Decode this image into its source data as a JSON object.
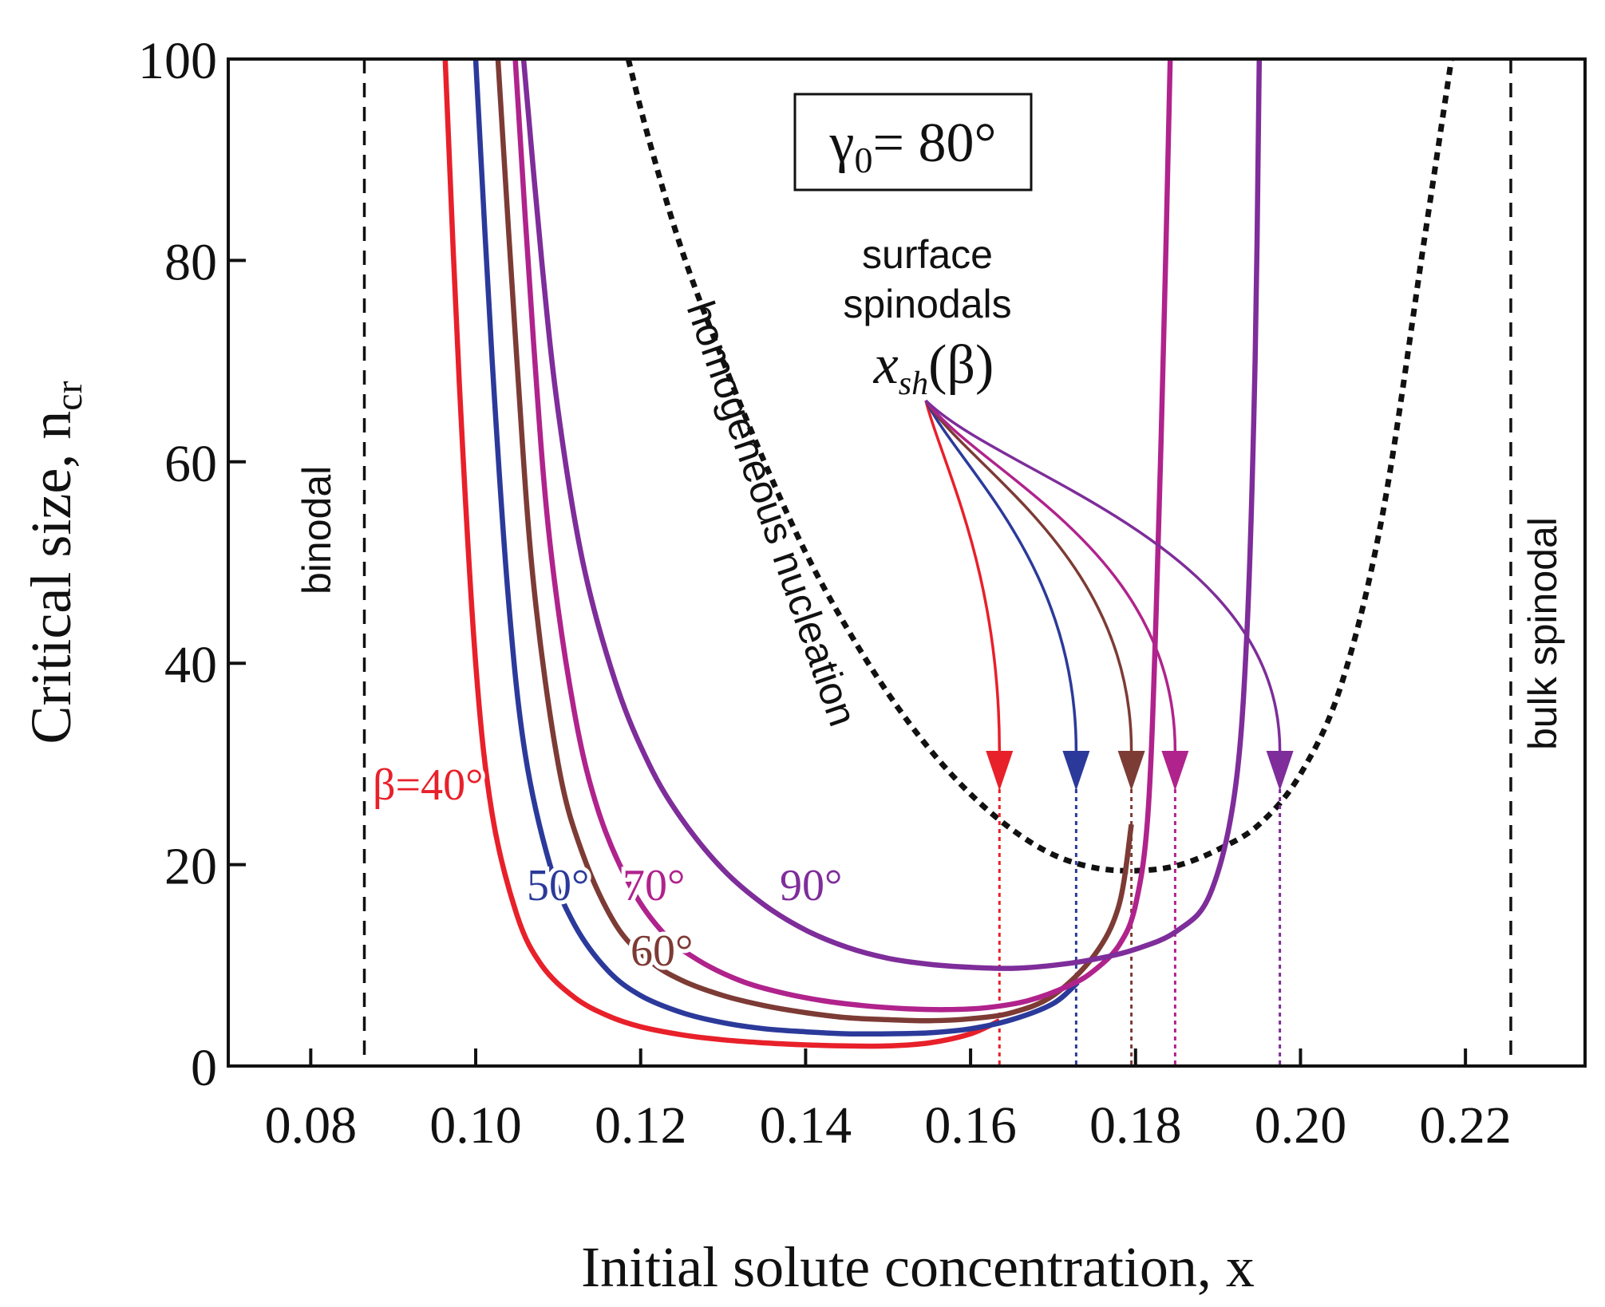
{
  "chart_data": {
    "type": "line",
    "title": "",
    "xlabel": "Initial solute concentration, x",
    "ylabel": "Critical size, n",
    "ylabel_subscript": "cr",
    "xlim": [
      0.07,
      0.2345
    ],
    "ylim": [
      0,
      100
    ],
    "xticks": [
      0.08,
      0.1,
      0.12,
      0.14,
      0.16,
      0.18,
      0.2,
      0.22
    ],
    "xtick_labels": [
      "0.08",
      "0.10",
      "0.12",
      "0.14",
      "0.16",
      "0.18",
      "0.20",
      "0.22"
    ],
    "yticks": [
      0,
      20,
      40,
      60,
      80,
      100
    ],
    "ytick_labels": [
      "0",
      "20",
      "40",
      "60",
      "80",
      "100"
    ],
    "annotation_box": {
      "symbol": "γ",
      "subscript": "0",
      "value": "= 80°"
    },
    "reference_lines": [
      {
        "name": "binodal",
        "label": "binodal",
        "x": 0.0865,
        "color": "#111111",
        "style": "dashed"
      },
      {
        "name": "bulk-spinodal",
        "label": "bulk spinodal",
        "x": 0.2255,
        "color": "#111111",
        "style": "dashed"
      }
    ],
    "homogeneous": {
      "label": "homogeneous nucleation",
      "color": "#111111",
      "style": "dotted",
      "x": [
        0.1185,
        0.121,
        0.125,
        0.13,
        0.135,
        0.14,
        0.145,
        0.15,
        0.155,
        0.16,
        0.165,
        0.17,
        0.175,
        0.18,
        0.185,
        0.19,
        0.195,
        0.2,
        0.205,
        0.21,
        0.215,
        0.2183
      ],
      "y": [
        100,
        92,
        81,
        70,
        60,
        51,
        43.5,
        37,
        31.5,
        27,
        23.5,
        21,
        19.7,
        19.4,
        19.9,
        21.5,
        24,
        29,
        38,
        55,
        82,
        100
      ]
    },
    "series": [
      {
        "name": "β=40°",
        "label": "β=40°",
        "color": "#e8202a",
        "x": [
          0.0963,
          0.098,
          0.1,
          0.102,
          0.105,
          0.108,
          0.112,
          0.116,
          0.12,
          0.125,
          0.13,
          0.135,
          0.14,
          0.145,
          0.15,
          0.155,
          0.16,
          0.1635
        ],
        "y": [
          100,
          68,
          40,
          25,
          15,
          10,
          6.8,
          5,
          3.9,
          3.1,
          2.6,
          2.3,
          2.1,
          2.0,
          2.0,
          2.3,
          3.2,
          4.5
        ],
        "surface_spinodal_x": 0.1635
      },
      {
        "name": "β=50°",
        "label": "50°",
        "color": "#2b3a9a",
        "x": [
          0.1,
          0.102,
          0.104,
          0.106,
          0.109,
          0.112,
          0.116,
          0.12,
          0.125,
          0.13,
          0.135,
          0.14,
          0.145,
          0.15,
          0.155,
          0.16,
          0.165,
          0.17,
          0.173
        ],
        "y": [
          100,
          70,
          46,
          31,
          20,
          14,
          9.5,
          7,
          5.3,
          4.3,
          3.7,
          3.4,
          3.2,
          3.2,
          3.3,
          3.7,
          4.6,
          6.2,
          8.3
        ],
        "surface_spinodal_x": 0.1728
      },
      {
        "name": "β=60°",
        "label": "60°",
        "color": "#7d3b35",
        "x": [
          0.1027,
          0.105,
          0.107,
          0.11,
          0.113,
          0.117,
          0.121,
          0.125,
          0.13,
          0.135,
          0.14,
          0.145,
          0.15,
          0.155,
          0.16,
          0.165,
          0.17,
          0.175,
          0.178,
          0.1795
        ],
        "y": [
          100,
          70,
          48,
          30,
          21,
          14,
          10.5,
          8.5,
          7,
          6,
          5.3,
          4.8,
          4.6,
          4.5,
          4.7,
          5.3,
          7,
          11,
          16,
          24
        ],
        "surface_spinodal_x": 0.1795
      },
      {
        "name": "β=70°",
        "label": "70°",
        "color": "#b0238c",
        "x": [
          0.1048,
          0.107,
          0.109,
          0.112,
          0.115,
          0.119,
          0.123,
          0.127,
          0.132,
          0.137,
          0.142,
          0.147,
          0.152,
          0.157,
          0.162,
          0.167,
          0.172,
          0.175,
          0.178,
          0.18,
          0.1815,
          0.1825,
          0.1835,
          0.1842
        ],
        "y": [
          100,
          72,
          52,
          35,
          25,
          17.5,
          13,
          10.5,
          8.5,
          7.3,
          6.5,
          6,
          5.7,
          5.6,
          5.8,
          6.5,
          8,
          9.5,
          12,
          16,
          25,
          45,
          75,
          100
        ],
        "surface_spinodal_x": 0.1848
      },
      {
        "name": "β=90°",
        "label": "90°",
        "color": "#7e2d9a",
        "x": [
          0.1058,
          0.108,
          0.11,
          0.113,
          0.117,
          0.121,
          0.125,
          0.13,
          0.135,
          0.14,
          0.145,
          0.15,
          0.155,
          0.16,
          0.165,
          0.17,
          0.175,
          0.18,
          0.185,
          0.189,
          0.192,
          0.1935,
          0.1945,
          0.195
        ],
        "y": [
          100,
          80,
          65,
          50,
          38,
          30,
          24.5,
          19.5,
          16,
          13.5,
          11.8,
          10.7,
          10.1,
          9.8,
          9.7,
          10,
          10.6,
          11.6,
          13.4,
          17,
          27,
          43,
          70,
          100
        ],
        "surface_spinodal_x": 0.1975
      }
    ],
    "legend": {
      "title": "surface spinodals",
      "symbol": "x",
      "subscript": "sh",
      "arg": "(β)"
    }
  }
}
